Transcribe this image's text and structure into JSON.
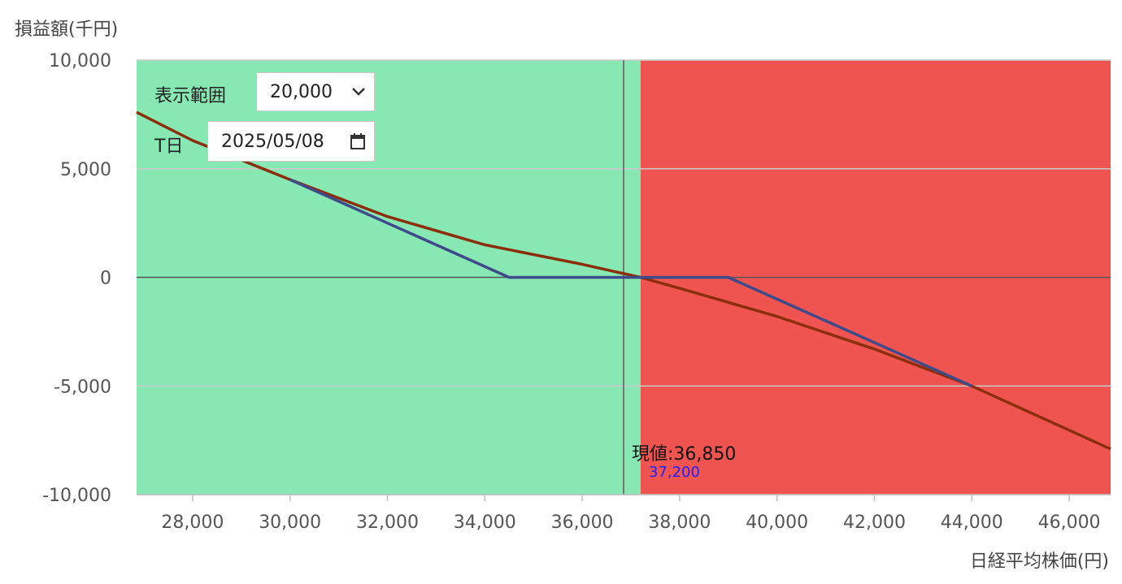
{
  "controls": {
    "range_label": "表示範囲",
    "range_value": "20,000",
    "tday_label": "T日",
    "tday_value": "2025/05/08"
  },
  "colors": {
    "profit_zone": "#88e8b4",
    "loss_zone": "#f05451",
    "expiry_line": "#3f4a8a",
    "tday_line": "#8b2e0c",
    "breakeven_label": "#2020ff"
  },
  "chart_data": {
    "type": "line",
    "title": "",
    "xlabel": "日経平均株価(円)",
    "ylabel": "損益額(千円)",
    "xlim": [
      26850,
      46850
    ],
    "ylim": [
      -10000,
      10000
    ],
    "xticks": [
      28000,
      30000,
      32000,
      34000,
      36000,
      38000,
      40000,
      42000,
      44000,
      46000
    ],
    "xtick_labels": [
      "28,000",
      "30,000",
      "32,000",
      "34,000",
      "36,000",
      "38,000",
      "40,000",
      "42,000",
      "44,000",
      "46,000"
    ],
    "yticks": [
      10000,
      5000,
      0,
      -5000,
      -10000
    ],
    "ytick_labels": [
      "10,000",
      "5,000",
      "0",
      "-5,000",
      "-10,000"
    ],
    "grid": true,
    "zones": [
      {
        "kind": "profit",
        "from": 26850,
        "to": 37200
      },
      {
        "kind": "loss",
        "from": 37200,
        "to": 46850
      }
    ],
    "series": [
      {
        "kind": "expiry",
        "x": [
          30000,
          34500,
          39000,
          44000
        ],
        "y": [
          4500,
          0,
          0,
          -5000
        ]
      },
      {
        "kind": "tday",
        "x": [
          26850,
          28000,
          30000,
          32000,
          34000,
          36000,
          37200,
          38000,
          40000,
          42000,
          44000,
          46850
        ],
        "y": [
          7600,
          6300,
          4500,
          2800,
          1500,
          600,
          0,
          -500,
          -1800,
          -3300,
          -5000,
          -7900
        ]
      }
    ],
    "annotations": {
      "current_price_label": "現値:36,850",
      "current_price_x": 36850,
      "breakeven_label": "37,200",
      "breakeven_x": 37200
    }
  }
}
